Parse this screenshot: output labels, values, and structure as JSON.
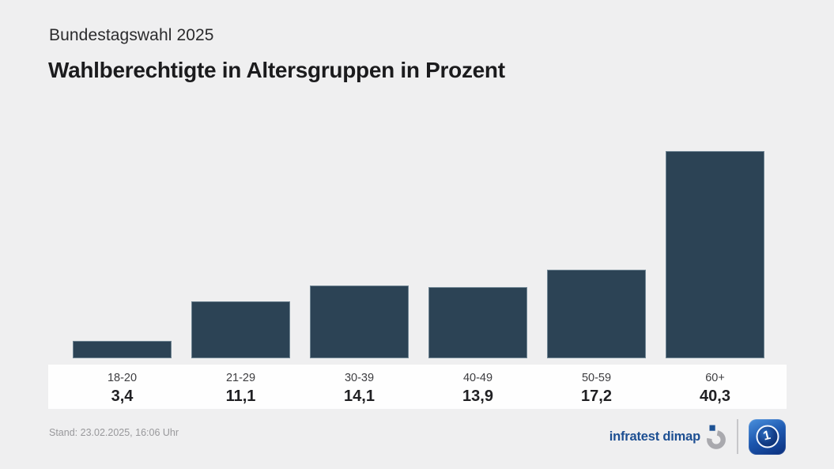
{
  "header": {
    "kicker": "Bundestagswahl 2025",
    "title": "Wahlberechtigte in Altersgruppen in Prozent"
  },
  "chart_data": {
    "type": "bar",
    "title": "Wahlberechtigte in Altersgruppen in Prozent",
    "subtitle": "Bundestagswahl 2025",
    "categories": [
      "18-20",
      "21-29",
      "30-39",
      "40-49",
      "50-59",
      "60+"
    ],
    "values": [
      3.4,
      11.1,
      14.1,
      13.9,
      17.2,
      40.3
    ],
    "value_labels": [
      "3,4",
      "11,1",
      "14,1",
      "13,9",
      "17,2",
      "40,3"
    ],
    "xlabel": "",
    "ylabel": "",
    "ylim": [
      0,
      42
    ],
    "grid": false,
    "legend": "none",
    "bar_color": "#2c4355"
  },
  "footer": {
    "stand": "Stand: 23.02.2025, 16:06 Uhr",
    "source_label": "infratest dimap",
    "ard_one_glyph": "1"
  },
  "colors": {
    "background": "#efeff0",
    "bar": "#2c4355",
    "strip": "#fefefe",
    "brand_blue": "#1d4f92",
    "stand_gray": "#98989b"
  }
}
